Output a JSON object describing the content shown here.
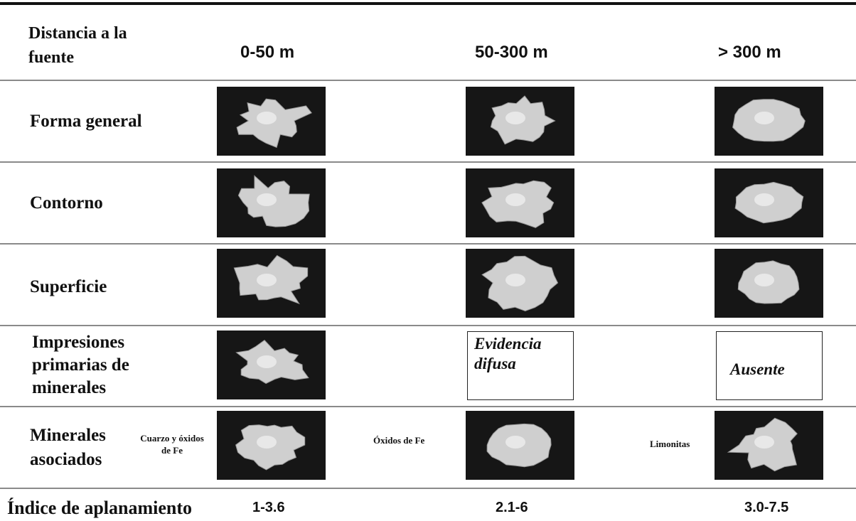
{
  "header": {
    "label": "Distancia a la fuente",
    "columns": [
      "0-50 m",
      "50-300 m",
      "> 300 m"
    ]
  },
  "rows": [
    {
      "label": "Forma general"
    },
    {
      "label": "Contorno"
    },
    {
      "label": "Superficie"
    },
    {
      "label": "Impresiones primarias de minerales",
      "notes": [
        "Evidencia difusa",
        "Ausente"
      ]
    },
    {
      "label": "Minerales asociados",
      "minerals": [
        "Cuarzo y óxidos de Fe",
        "Óxidos de Fe",
        "Limonitas"
      ]
    }
  ],
  "footer": {
    "label": "Índice de aplanamiento",
    "values": [
      "1-3.6",
      "2.1-6",
      "3.0-7.5"
    ]
  }
}
